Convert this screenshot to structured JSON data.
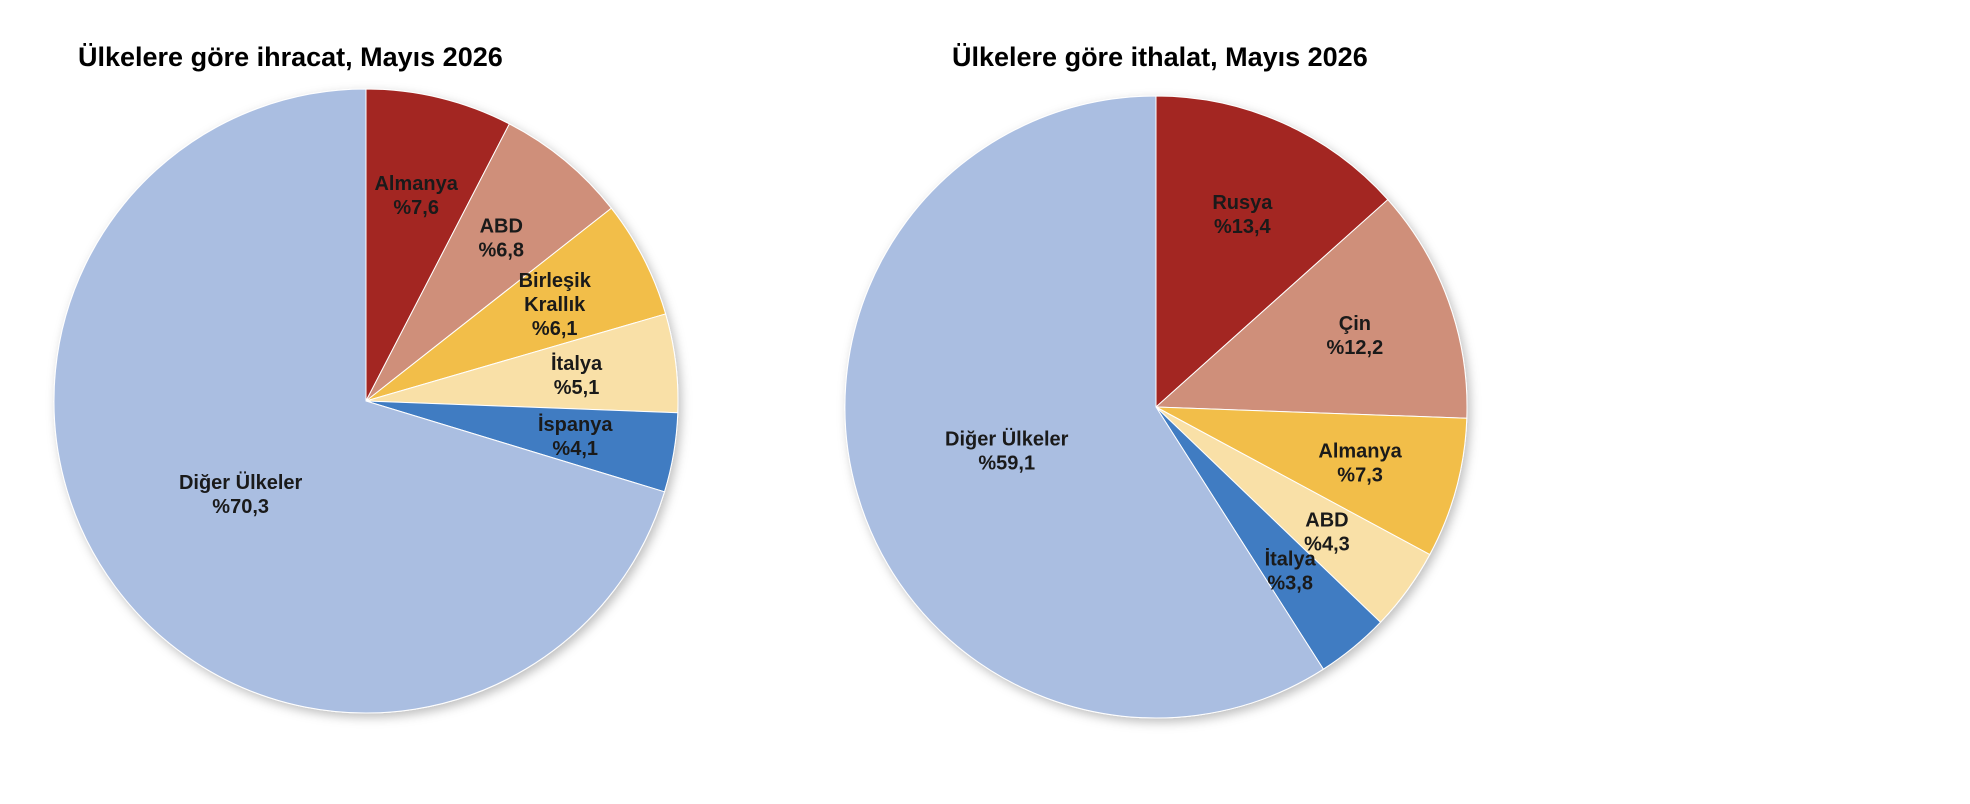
{
  "chart_data": [
    {
      "type": "pie",
      "title": "Ülkelere göre ihracat, Mayıs 2026",
      "start_angle_deg": 0,
      "direction": "clockwise",
      "slices": [
        {
          "label": "Almanya",
          "value_label": "%7,6",
          "value": 7.6,
          "color": "#A32720"
        },
        {
          "label": "ABD",
          "value_label": "%6,8",
          "value": 6.8,
          "color": "#CF8F7A"
        },
        {
          "label": "Birleşik Krallık",
          "label_lines": [
            "Birleşik",
            "Krallık"
          ],
          "value_label": "%6,1",
          "value": 6.1,
          "color": "#F2BE4A"
        },
        {
          "label": "İtalya",
          "value_label": "%5,1",
          "value": 5.1,
          "color": "#F9E0A7"
        },
        {
          "label": "İspanya",
          "value_label": "%4,1",
          "value": 4.1,
          "color": "#3F7BC2"
        },
        {
          "label": "Diğer Ülkeler",
          "value_label": "%70,3",
          "value": 70.3,
          "color": "#AABEE1"
        }
      ]
    },
    {
      "type": "pie",
      "title": "Ülkelere göre ithalat, Mayıs 2026",
      "start_angle_deg": 0,
      "direction": "clockwise",
      "slices": [
        {
          "label": "Rusya",
          "value_label": "%13,4",
          "value": 13.4,
          "color": "#A32720"
        },
        {
          "label": "Çin",
          "value_label": "%12,2",
          "value": 12.2,
          "color": "#CF8F7A"
        },
        {
          "label": "Almanya",
          "value_label": "%7,3",
          "value": 7.3,
          "color": "#F2BE4A"
        },
        {
          "label": "ABD",
          "value_label": "%4,3",
          "value": 4.3,
          "color": "#F9E0A7"
        },
        {
          "label": "İtalya",
          "value_label": "%3,8",
          "value": 3.8,
          "color": "#3F7BC2"
        },
        {
          "label": "Diğer Ülkeler",
          "value_label": "%59,1",
          "value": 59.1,
          "color": "#AABEE1"
        }
      ]
    }
  ]
}
